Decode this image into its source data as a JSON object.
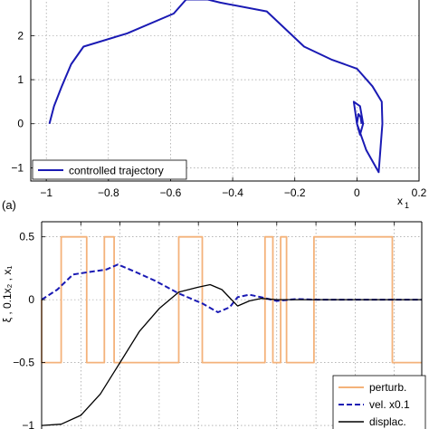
{
  "panel_label": "(a)",
  "chart_data": [
    {
      "type": "line",
      "xlim": [
        -1.05,
        0.2
      ],
      "ylim": [
        -1.3,
        2.85
      ],
      "xticks": [
        -1,
        -0.8,
        -0.6,
        -0.4,
        -0.2,
        0,
        0.2
      ],
      "xtick_labels": [
        "−1",
        "−0.8",
        "−0.6",
        "−0.4",
        "−0.2",
        "0",
        "0.2"
      ],
      "yticks": [
        -1,
        0,
        1,
        2
      ],
      "ytick_labels": [
        "−1",
        "0",
        "1",
        "2"
      ],
      "xlabel": "x",
      "xlabel_sub": "1",
      "ylabel": "",
      "grid": true,
      "legend_position": "bottom-left",
      "series": [
        {
          "name": "controlled trajectory",
          "color": "#1a1ab4",
          "points": [
            [
              -0.99,
              0.0
            ],
            [
              -0.975,
              0.4
            ],
            [
              -0.95,
              0.85
            ],
            [
              -0.92,
              1.35
            ],
            [
              -0.88,
              1.75
            ],
            [
              -0.74,
              2.05
            ],
            [
              -0.59,
              2.5
            ],
            [
              -0.55,
              2.82
            ],
            [
              -0.48,
              2.82
            ],
            [
              -0.44,
              2.75
            ],
            [
              -0.29,
              2.55
            ],
            [
              -0.17,
              1.75
            ],
            [
              -0.08,
              1.45
            ],
            [
              0.0,
              1.25
            ],
            [
              0.05,
              0.85
            ],
            [
              0.08,
              0.5
            ],
            [
              0.082,
              0.0
            ],
            [
              0.07,
              -1.1
            ],
            [
              0.03,
              -0.6
            ],
            [
              0.0,
              0.0
            ],
            [
              -0.01,
              0.5
            ],
            [
              0.01,
              0.4
            ],
            [
              0.02,
              0.0
            ],
            [
              0.01,
              -0.25
            ],
            [
              0.0,
              0.0
            ],
            [
              0.005,
              0.22
            ],
            [
              0.012,
              0.15
            ],
            [
              0.015,
              0.0
            ]
          ]
        }
      ]
    },
    {
      "type": "line",
      "xlim": [
        0,
        9.7
      ],
      "ylim": [
        -1.05,
        0.62
      ],
      "yticks": [
        -1,
        -0.5,
        0,
        0.5
      ],
      "ytick_labels": [
        "−1",
        "−0.5",
        "0",
        "0.5"
      ],
      "grid": true,
      "ylabel": "ξ ,  0.1x₂ ,  x₁",
      "legend_position": "bottom-right",
      "series": [
        {
          "name": "perturb.",
          "color": "#f4b27a",
          "style": "solid",
          "points": [
            [
              0,
              0
            ],
            [
              0,
              -0.5
            ],
            [
              0.5,
              -0.5
            ],
            [
              0.5,
              0.5
            ],
            [
              1.15,
              0.5
            ],
            [
              1.15,
              -0.5
            ],
            [
              1.6,
              -0.5
            ],
            [
              1.6,
              0.5
            ],
            [
              1.85,
              0.5
            ],
            [
              1.85,
              -0.5
            ],
            [
              3.5,
              -0.5
            ],
            [
              3.5,
              0.5
            ],
            [
              4.1,
              0.5
            ],
            [
              4.1,
              -0.5
            ],
            [
              5.7,
              -0.5
            ],
            [
              5.7,
              0.5
            ],
            [
              5.9,
              0.5
            ],
            [
              5.9,
              -0.5
            ],
            [
              6.1,
              -0.5
            ],
            [
              6.1,
              0.5
            ],
            [
              6.25,
              0.5
            ],
            [
              6.25,
              -0.5
            ],
            [
              6.95,
              -0.5
            ],
            [
              6.95,
              0.5
            ],
            [
              8.95,
              0.5
            ],
            [
              8.95,
              -0.5
            ],
            [
              9.7,
              -0.5
            ]
          ]
        },
        {
          "name": "vel. x0.1",
          "color": "#1a1ab4",
          "style": "dashed",
          "points": [
            [
              0,
              0
            ],
            [
              0.4,
              0.08
            ],
            [
              0.8,
              0.2
            ],
            [
              1.2,
              0.22
            ],
            [
              1.65,
              0.24
            ],
            [
              1.95,
              0.28
            ],
            [
              2.4,
              0.22
            ],
            [
              2.9,
              0.15
            ],
            [
              3.5,
              0.05
            ],
            [
              4.1,
              -0.03
            ],
            [
              4.5,
              -0.1
            ],
            [
              4.8,
              -0.06
            ],
            [
              5.0,
              0.02
            ],
            [
              5.3,
              0.04
            ],
            [
              5.6,
              0.02
            ],
            [
              6.0,
              -0.01
            ],
            [
              6.5,
              0.005
            ],
            [
              7.0,
              0.0
            ],
            [
              9.7,
              0.0
            ]
          ]
        },
        {
          "name": "displac.",
          "color": "#000000",
          "style": "solid",
          "points": [
            [
              0,
              -1.0
            ],
            [
              0.5,
              -0.99
            ],
            [
              1.0,
              -0.92
            ],
            [
              1.5,
              -0.75
            ],
            [
              2.0,
              -0.5
            ],
            [
              2.5,
              -0.25
            ],
            [
              3.0,
              -0.07
            ],
            [
              3.5,
              0.06
            ],
            [
              4.0,
              0.1
            ],
            [
              4.3,
              0.12
            ],
            [
              4.6,
              0.08
            ],
            [
              5.0,
              -0.05
            ],
            [
              5.3,
              -0.01
            ],
            [
              5.6,
              0.01
            ],
            [
              6.0,
              0.0
            ],
            [
              9.7,
              0.0
            ]
          ]
        }
      ]
    }
  ]
}
